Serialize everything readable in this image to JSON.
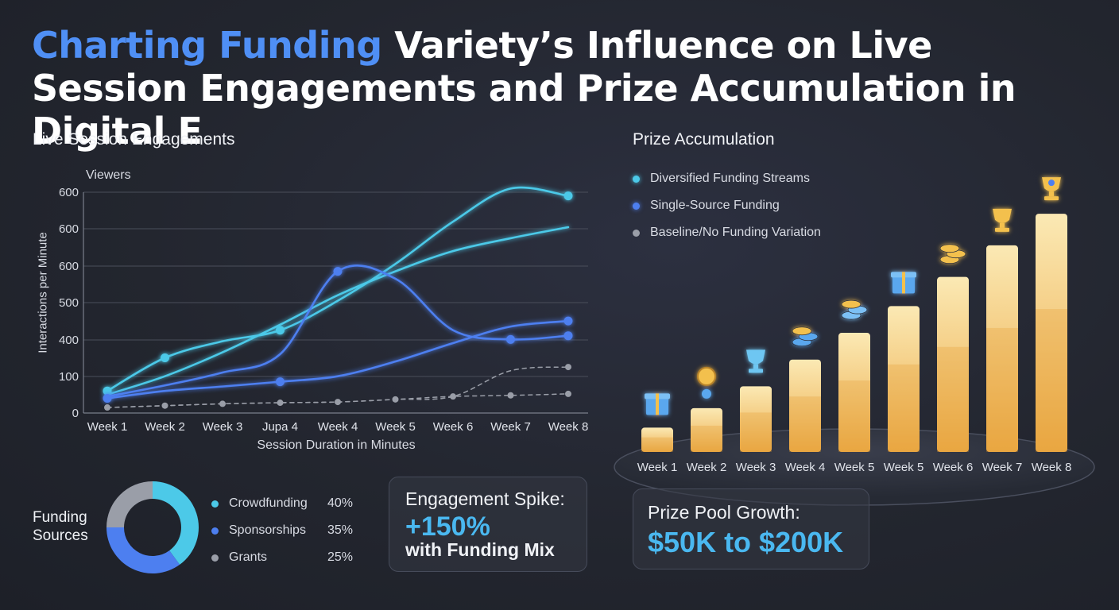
{
  "title": {
    "highlight": "Charting Funding",
    "rest": " Variety’s Influence on Live Session Engagements and Prize Accumulation in Digital E"
  },
  "colors": {
    "diversified": "#4cc9e8",
    "single": "#4d7ff0",
    "baseline": "#9a9ea8",
    "bar_top": "#fbe9b4",
    "bar_bottom": "#f1b04c"
  },
  "engagement_panel": {
    "title": "Live Session Engagements",
    "y_title": "Viewers",
    "y_axis_label": "Interactions per Minute",
    "x_axis_label": "Session Duration in Minutes"
  },
  "prize_panel": {
    "title": "Prize Accumulation",
    "legend": [
      {
        "label": "Diversified Funding Streams",
        "color": "#4cc9e8"
      },
      {
        "label": "Single-Source Funding",
        "color": "#4d7ff0"
      },
      {
        "label": "Baseline/No Funding Variation",
        "color": "#9a9ea8"
      }
    ]
  },
  "funding_sources": {
    "title": "Funding Sources",
    "items": [
      {
        "label": "Crowdfunding",
        "pct": "40%",
        "value": 40,
        "color": "#4cc9e8"
      },
      {
        "label": "Sponsorships",
        "pct": "35%",
        "value": 35,
        "color": "#4d7ff0"
      },
      {
        "label": "Grants",
        "pct": "25%",
        "value": 25,
        "color": "#9a9ea8"
      }
    ]
  },
  "card_engagement": {
    "line1": "Engagement Spike:",
    "line2": "+150%",
    "line3": "with Funding Mix"
  },
  "card_prize": {
    "line1": "Prize Pool Growth:",
    "line2": "$50K to $200K"
  },
  "chart_data": [
    {
      "type": "line",
      "title": "Live Session Engagements",
      "ylabel": "Interactions per Minute",
      "xlabel": "Session Duration in Minutes",
      "categories": [
        "Week 1",
        "Week 2",
        "Week 3",
        "Jupa 4",
        "Week 4",
        "Week 5",
        "Week 6",
        "Week 7",
        "Week 8"
      ],
      "y_tick_labels": [
        "0",
        "100",
        "400",
        "500",
        "600",
        "600",
        "600"
      ],
      "ylim": [
        0,
        600
      ],
      "grid": true,
      "series": [
        {
          "name": "Diversified Funding Streams",
          "color": "#4cc9e8",
          "values": [
            60,
            150,
            195,
            225,
            305,
            405,
            520,
            610,
            590
          ],
          "markers": [
            0,
            1,
            3,
            8
          ]
        },
        {
          "name": "Diversified Funding Streams",
          "color": "#4cc9e8",
          "values": [
            50,
            100,
            165,
            240,
            320,
            385,
            440,
            475,
            505
          ]
        },
        {
          "name": "Single-Source Funding",
          "color": "#4d7ff0",
          "values": [
            45,
            75,
            110,
            160,
            385,
            365,
            225,
            200,
            210
          ],
          "markers": [
            4,
            7,
            8
          ]
        },
        {
          "name": "Single-Source Funding",
          "color": "#4d7ff0",
          "values": [
            40,
            60,
            72,
            85,
            100,
            140,
            190,
            235,
            250
          ],
          "markers": [
            0,
            3,
            8
          ]
        },
        {
          "name": "Baseline/No Funding Variation",
          "color": "#9a9ea8",
          "values": [
            15,
            20,
            25,
            28,
            30,
            37,
            45,
            115,
            125
          ],
          "markers": [
            0,
            1,
            2,
            3,
            4,
            5,
            6,
            8
          ]
        },
        {
          "name": "Baseline/No Funding Variation",
          "color": "#9a9ea8",
          "values": [
            15,
            20,
            25,
            28,
            30,
            37,
            45,
            48,
            52
          ],
          "markers": [
            7,
            8
          ]
        }
      ]
    },
    {
      "type": "bar",
      "title": "Prize Accumulation",
      "categories": [
        "Week 1",
        "Week 2",
        "Week 3",
        "Week 4",
        "Week 5",
        "Week 5",
        "Week 6",
        "Week 7",
        "Week 8"
      ],
      "values": [
        10,
        18,
        27,
        38,
        49,
        60,
        72,
        85,
        98
      ],
      "ylim": [
        0,
        100
      ],
      "icons": [
        "gift-icon",
        "coin-icon",
        "trophy-icon",
        "coin-stack-icon",
        "coin-stack-icon",
        "gift-icon",
        "coin-stack-icon",
        "trophy-icon",
        "trophy-icon"
      ]
    },
    {
      "type": "pie",
      "title": "Funding Sources",
      "categories": [
        "Crowdfunding",
        "Sponsorships",
        "Grants"
      ],
      "values": [
        40,
        35,
        25
      ]
    }
  ]
}
